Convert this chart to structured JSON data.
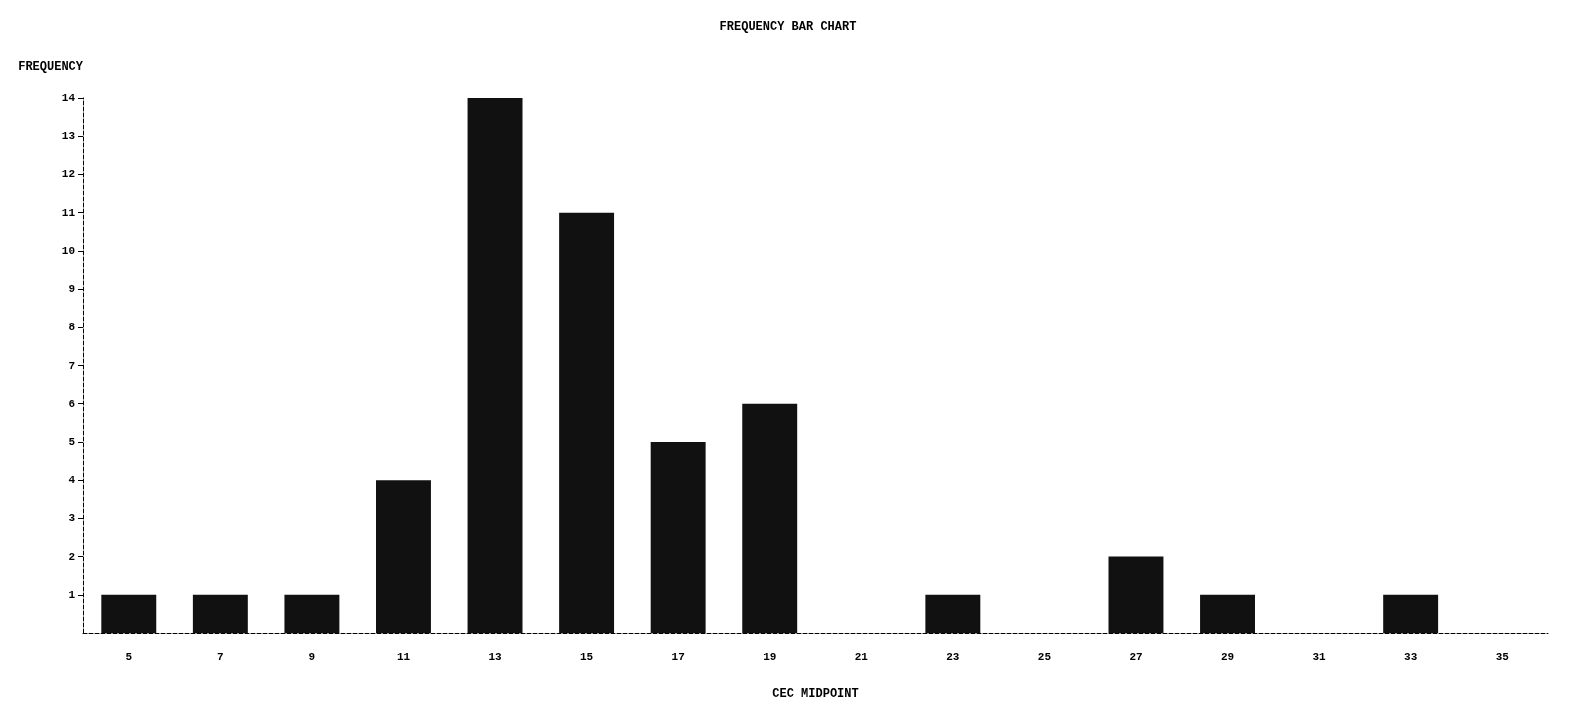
{
  "chart_data": {
    "type": "bar",
    "title": "FREQUENCY BAR CHART",
    "xlabel": "CEC MIDPOINT",
    "ylabel": "FREQUENCY",
    "categories": [
      "5",
      "7",
      "9",
      "11",
      "13",
      "15",
      "17",
      "19",
      "21",
      "23",
      "25",
      "27",
      "29",
      "31",
      "33",
      "35"
    ],
    "values": [
      1,
      1,
      1,
      4,
      14,
      11,
      5,
      6,
      0,
      1,
      0,
      2,
      1,
      0,
      1,
      0
    ],
    "color": "#111111",
    "ylim": [
      0,
      14
    ],
    "yticks": [
      1,
      2,
      3,
      4,
      5,
      6,
      7,
      8,
      9,
      10,
      11,
      12,
      13,
      14
    ],
    "grid": false
  }
}
